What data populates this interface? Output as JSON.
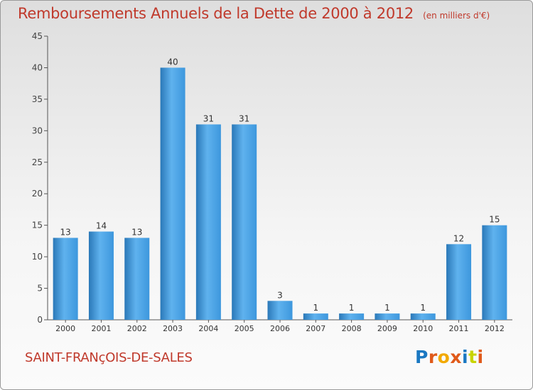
{
  "header": {
    "title": "Remboursements Annuels de la Dette de 2000 à 2012",
    "subtitle": "(en milliers d'€)"
  },
  "footer": {
    "commune": "SAINT-FRANçOIS-DE-SALES",
    "logo_text": "Proxiti",
    "logo_colors": [
      "#1a78c2",
      "#e05a1a",
      "#f2a900",
      "#e05a1a",
      "#1a78c2",
      "#c8d400",
      "#e05a1a"
    ]
  },
  "colors": {
    "bar": "#3d97dd",
    "bar_light": "#5fb2ee",
    "bar_dark": "#2a78b8",
    "title": "#c0392b",
    "axis": "#555555"
  },
  "chart_data": {
    "type": "bar",
    "title": "Remboursements Annuels de la Dette de 2000 à 2012",
    "subtitle": "(en milliers d'€)",
    "categories": [
      "2000",
      "2001",
      "2002",
      "2003",
      "2004",
      "2005",
      "2006",
      "2007",
      "2008",
      "2009",
      "2010",
      "2011",
      "2012"
    ],
    "values": [
      13,
      14,
      13,
      40,
      31,
      31,
      3,
      1,
      1,
      1,
      1,
      12,
      15
    ],
    "data_labels": [
      "13",
      "14",
      "13",
      "40",
      "31",
      "31",
      "3",
      "1",
      "1",
      "1",
      "1",
      "12",
      "15"
    ],
    "ylim": [
      0,
      45
    ],
    "yticks": [
      0,
      5,
      10,
      15,
      20,
      25,
      30,
      35,
      40,
      45
    ],
    "grid": false,
    "xlabel": "",
    "ylabel": ""
  }
}
